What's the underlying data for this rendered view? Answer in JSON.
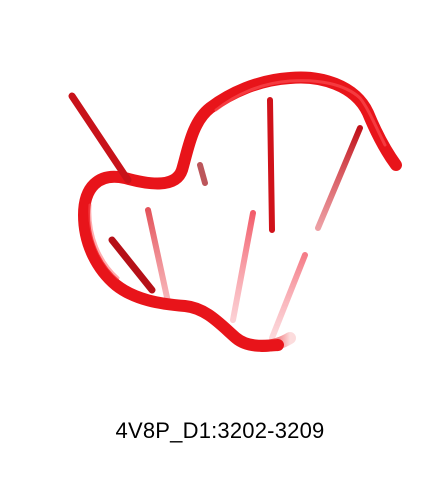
{
  "figure": {
    "caption": "4V8P_D1:3202-3209",
    "backbone_color": "#e8141a",
    "rung_color": "#d01018"
  }
}
